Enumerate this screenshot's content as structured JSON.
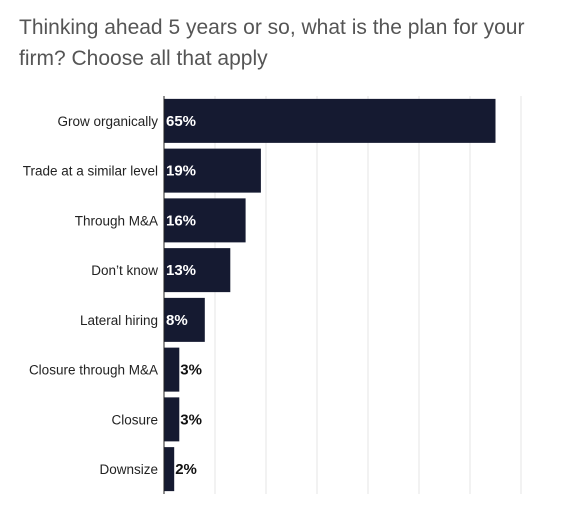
{
  "chart_data": {
    "type": "bar",
    "orientation": "horizontal",
    "title": "Thinking ahead 5 years or so, what is the plan for your firm? Choose all that apply",
    "categories": [
      "Grow organically",
      "Trade at a similar level",
      "Through M&A",
      "Don’t know",
      "Lateral hiring",
      "Closure through M&A",
      "Closure",
      "Downsize"
    ],
    "values": [
      65,
      19,
      16,
      13,
      8,
      3,
      3,
      2
    ],
    "value_labels": [
      "65%",
      "19%",
      "16%",
      "13%",
      "8%",
      "3%",
      "3%",
      "2%"
    ],
    "xlim": [
      0,
      80
    ],
    "grid": true,
    "bar_color": "#151a31",
    "grid_color": "#e6e6e6",
    "axis_color": "#222222"
  }
}
